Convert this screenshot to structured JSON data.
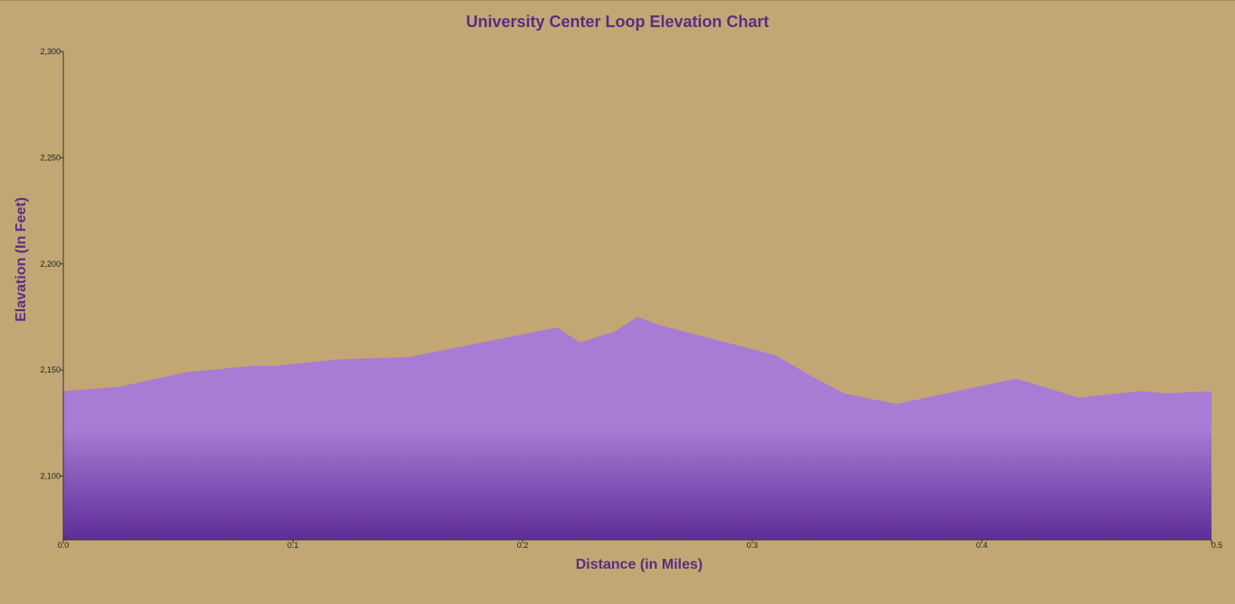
{
  "colors": {
    "background": "#C2A774",
    "title": "#5B2C83",
    "area_top": "#A87BD4",
    "area_bottom": "#5E2E98"
  },
  "chart_data": {
    "type": "area",
    "title": "University Center Loop Elevation Chart",
    "xlabel": "Distance (in Miles)",
    "ylabel": "Elavation (In Feet)",
    "xlim": [
      0,
      0.5
    ],
    "ylim": [
      2070,
      2300
    ],
    "x_ticks": [
      "0.0",
      "0.1",
      "0.2",
      "0.3",
      "0.4",
      "0.5"
    ],
    "y_ticks": [
      "2,100",
      "2,150",
      "2,200",
      "2,250",
      "2,300"
    ],
    "grid": false,
    "legend": "none",
    "x": [
      0.0,
      0.024,
      0.054,
      0.083,
      0.093,
      0.12,
      0.15,
      0.215,
      0.225,
      0.24,
      0.25,
      0.26,
      0.31,
      0.326,
      0.34,
      0.353,
      0.363,
      0.415,
      0.442,
      0.46,
      0.47,
      0.48,
      0.5
    ],
    "y": [
      2140,
      2142,
      2149,
      2152,
      2152,
      2155,
      2156,
      2170,
      2163,
      2168,
      2175,
      2171,
      2157,
      2147,
      2139,
      2136,
      2134,
      2146,
      2137,
      2139,
      2140,
      2139,
      2140
    ]
  }
}
